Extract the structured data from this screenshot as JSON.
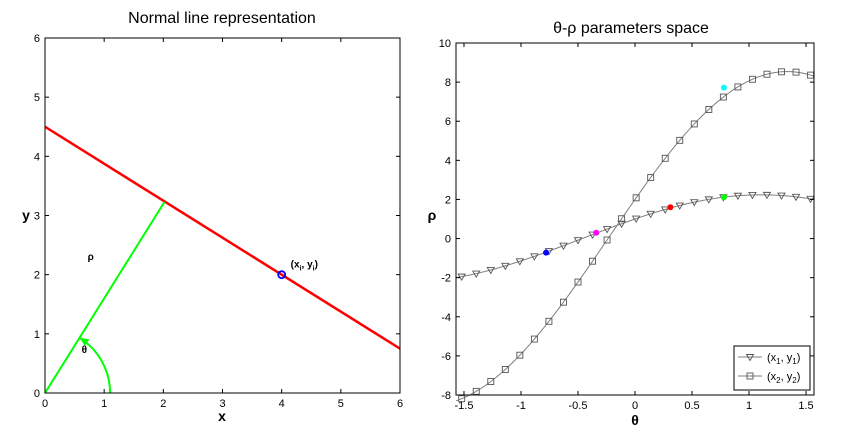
{
  "chart_data": [
    {
      "type": "line",
      "title": "Normal line representation",
      "xlabel": "x",
      "ylabel": "y",
      "xlim": [
        0,
        6
      ],
      "ylim": [
        0,
        6
      ],
      "x_ticks": [
        "0",
        "1",
        "2",
        "3",
        "4",
        "5",
        "6"
      ],
      "y_ticks": [
        "0",
        "1",
        "2",
        "3",
        "4",
        "5",
        "6"
      ],
      "series": [
        {
          "color": "#ff0000",
          "x": [
            0,
            6
          ],
          "y": [
            4.5,
            0.75
          ]
        },
        {
          "color": "#00ff00",
          "x": [
            0,
            2.02
          ],
          "y": [
            0,
            3.23
          ]
        }
      ],
      "point": {
        "x": 4,
        "y": 2,
        "color": "#0000ff",
        "label": "(x",
        "label_sub": "i",
        "label_mid": ", y",
        "label_sub2": "i",
        "label_end": ")"
      },
      "rho_label": "ρ",
      "theta_label": "θ"
    },
    {
      "type": "line",
      "title": "θ-ρ parameters space",
      "xlabel": "θ",
      "ylabel": "ρ",
      "xlim": [
        -1.57,
        1.57
      ],
      "ylim": [
        -8,
        10
      ],
      "x_ticks": [
        -1.5,
        -1,
        -0.5,
        0,
        0.5,
        1,
        1.5
      ],
      "x_tick_labels": [
        "-1.5",
        "-1",
        "-0.5",
        "0",
        "0.5",
        "1",
        "1.5"
      ],
      "y_ticks": [
        -8,
        -6,
        -4,
        -2,
        0,
        2,
        4,
        6,
        8,
        10
      ],
      "y_tick_labels": [
        "-8",
        "-6",
        "-4",
        "-2",
        "0",
        "2",
        "4",
        "6",
        "8",
        "10"
      ],
      "series": [
        {
          "name_parts": [
            "(x",
            "1",
            ", y",
            "1",
            ")"
          ],
          "x1": 1,
          "y1": 2,
          "marker": "triangle-down",
          "color": "#7f7f7f"
        },
        {
          "name_parts": [
            "(x",
            "2",
            ", y",
            "2",
            ")"
          ],
          "x1": 2,
          "y1": 8.3,
          "marker": "square",
          "color": "#7f7f7f"
        }
      ],
      "highlight_points": [
        {
          "x": -0.78,
          "y": -0.72,
          "color": "#0000ff"
        },
        {
          "x": -0.34,
          "y": 0.3,
          "color": "#ff00ff"
        },
        {
          "x": 0.31,
          "y": 1.6,
          "color": "#ff0000"
        },
        {
          "x": 0.78,
          "y": 2.12,
          "color": "#00ff00"
        },
        {
          "x": 0.78,
          "y": 7.72,
          "color": "#00ffff"
        }
      ]
    }
  ]
}
